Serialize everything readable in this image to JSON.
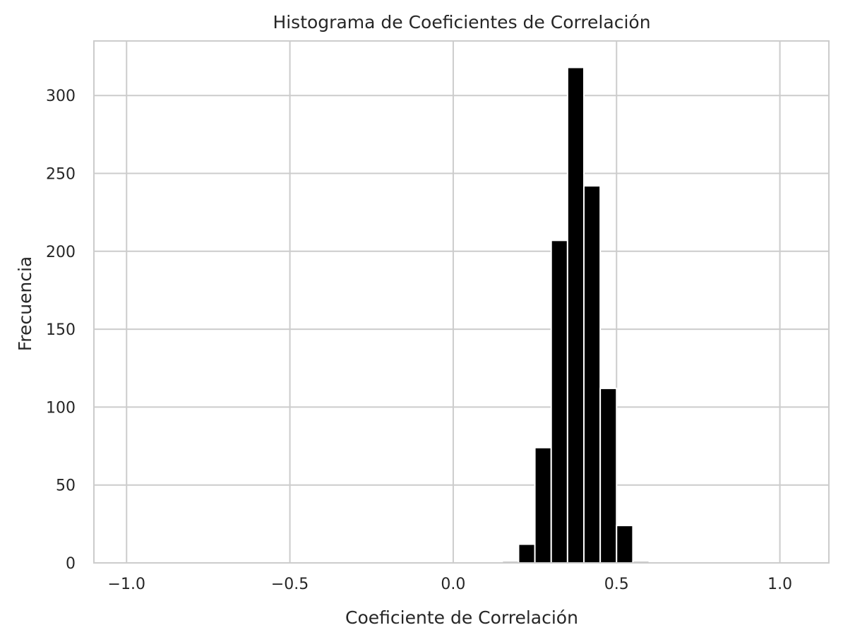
{
  "chart_data": {
    "type": "bar",
    "title": "Histograma de Coeficientes de Correlación",
    "xlabel": "Coeficiente de Correlación",
    "ylabel": "Frecuencia",
    "xlim": [
      -1.1,
      1.15
    ],
    "ylim": [
      0,
      335
    ],
    "xticks": [
      -1.0,
      -0.5,
      0.0,
      0.5,
      1.0
    ],
    "xtick_labels": [
      "−1.0",
      "−0.5",
      "0.0",
      "0.5",
      "1.0"
    ],
    "yticks": [
      0,
      50,
      100,
      150,
      200,
      250,
      300
    ],
    "ytick_labels": [
      "0",
      "50",
      "100",
      "150",
      "200",
      "250",
      "300"
    ],
    "grid": true,
    "bar_color": "#000000",
    "grid_color": "#cccccc",
    "bins": [
      {
        "x0": 0.15,
        "x1": 0.2,
        "value": 1
      },
      {
        "x0": 0.2,
        "x1": 0.25,
        "value": 12
      },
      {
        "x0": 0.25,
        "x1": 0.3,
        "value": 74
      },
      {
        "x0": 0.3,
        "x1": 0.35,
        "value": 207
      },
      {
        "x0": 0.35,
        "x1": 0.4,
        "value": 318
      },
      {
        "x0": 0.4,
        "x1": 0.45,
        "value": 242
      },
      {
        "x0": 0.45,
        "x1": 0.5,
        "value": 112
      },
      {
        "x0": 0.5,
        "x1": 0.55,
        "value": 24
      },
      {
        "x0": 0.55,
        "x1": 0.6,
        "value": 1
      }
    ]
  }
}
